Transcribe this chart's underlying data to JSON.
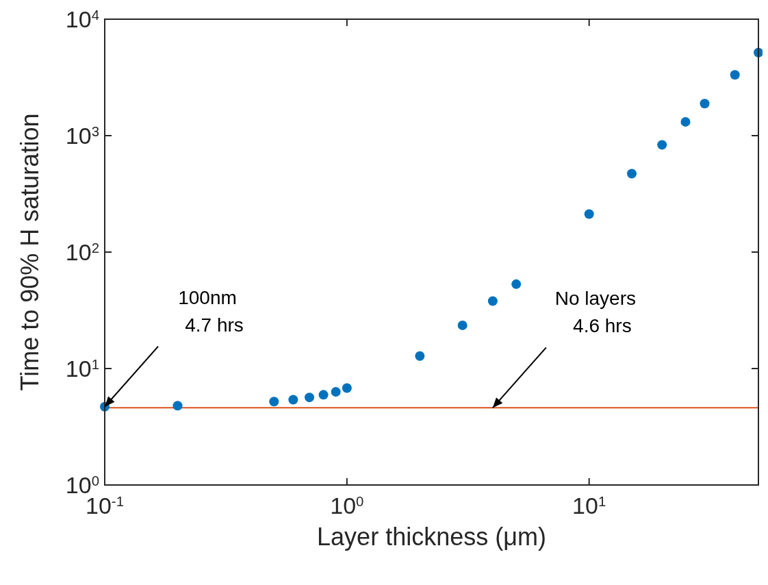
{
  "chart_data": {
    "type": "scatter",
    "xlabel": "Layer thickness (μm)",
    "ylabel": "Time to 90% H saturation",
    "log": "xy",
    "grid": false,
    "marker": "circle",
    "x": [
      0.1,
      0.2,
      0.5,
      0.6,
      0.7,
      0.8,
      0.9,
      1,
      2,
      3,
      4,
      5,
      10,
      15,
      20,
      25,
      30,
      40,
      50
    ],
    "series": [
      {
        "color": "#0072bd",
        "values": [
          4.7,
          4.8,
          5.2,
          5.4,
          5.65,
          5.95,
          6.3,
          6.8,
          12.8,
          23.5,
          38,
          53,
          212,
          472,
          834,
          1313,
          1885,
          3330,
          5170
        ]
      }
    ],
    "xlim": [
      0.1,
      50
    ],
    "ylim": [
      1,
      10000
    ],
    "xticks": [
      {
        "value": 0.1,
        "label": "10$^{-1}$"
      },
      {
        "value": 1,
        "label": "10$^{0}$"
      },
      {
        "value": 10,
        "label": "10$^{1}$"
      }
    ],
    "yticks": [
      {
        "value": 1,
        "label": "10$^{0}$"
      },
      {
        "value": 10,
        "label": "10$^{1}$"
      },
      {
        "value": 100,
        "label": "10$^{2}$"
      },
      {
        "value": 1000,
        "label": "10$^{3}$"
      },
      {
        "value": 10000,
        "label": "10$^{4}$"
      }
    ],
    "ref_lines": [
      {
        "axis": "y",
        "value": 4.6,
        "color": "#d95319",
        "line_style": "solid"
      }
    ],
    "annotations": [
      {
        "text": "100nm\n4.7 hrs",
        "x": 0.1,
        "y": 4.7
      },
      {
        "text": "No layers\n4.6 hrs",
        "x": 4,
        "y": 4.6
      }
    ]
  }
}
